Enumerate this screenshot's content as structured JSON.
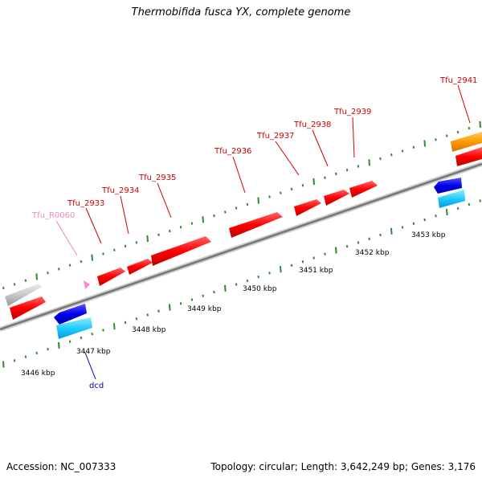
{
  "title": "Thermobifida fusca YX, complete genome",
  "footer": {
    "accession": "Accession: NC_007333",
    "summary": "Topology: circular; Length: 3,642,249 bp; Genes: 3,176"
  },
  "colors": {
    "gene_red": "#ff0000",
    "gene_blue": "#0000ee",
    "gene_cyan": "#22ccff",
    "gene_gray": "#c8c8c8",
    "gene_orange": "#ff9900",
    "gene_pink": "#ff88cc",
    "tick_green": "#338833",
    "backbone": "#888888",
    "label_red": "#cc0000",
    "label_blue": "#0000aa",
    "label_pink": "#ee88bb"
  },
  "genes": [
    {
      "name": "Tfu_R0060",
      "color": "pink"
    },
    {
      "name": "Tfu_2933",
      "color": "red"
    },
    {
      "name": "Tfu_2934",
      "color": "red"
    },
    {
      "name": "Tfu_2935",
      "color": "red"
    },
    {
      "name": "Tfu_2936",
      "color": "red"
    },
    {
      "name": "Tfu_2937",
      "color": "red"
    },
    {
      "name": "Tfu_2938",
      "color": "red"
    },
    {
      "name": "Tfu_2939",
      "color": "red"
    },
    {
      "name": "Tfu_2941",
      "color": "red"
    },
    {
      "name": "dcd",
      "color": "blue"
    }
  ],
  "scale_labels": [
    "3446 kbp",
    "3447 kbp",
    "3448 kbp",
    "3449 kbp",
    "3450 kbp",
    "3451 kbp",
    "3452 kbp",
    "3453 kbp"
  ]
}
